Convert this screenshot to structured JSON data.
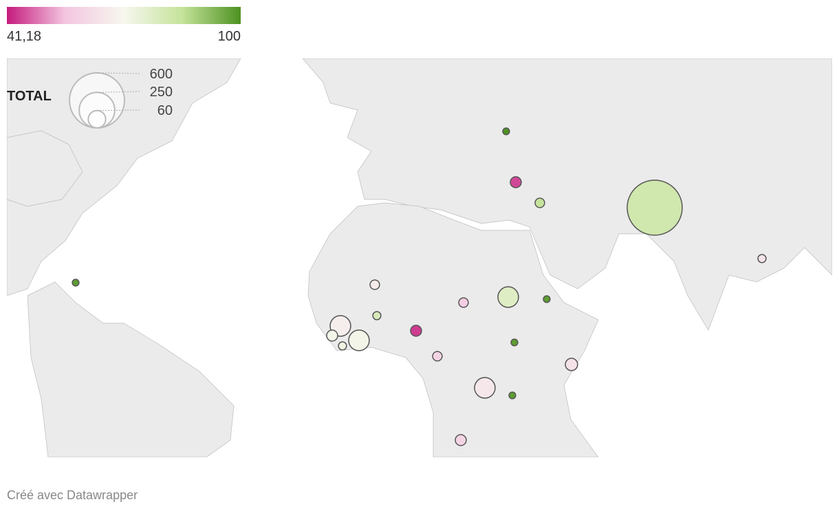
{
  "chart_data": {
    "type": "bubble-map",
    "color_legend": {
      "min": {
        "value": 41.18,
        "label": "41,18"
      },
      "max": 100,
      "colors": [
        "#c51b7d",
        "#f3c6e0",
        "#f7f7ef",
        "#c5e39a",
        "#4d9221"
      ]
    },
    "size_legend": {
      "title": "TOTAL",
      "values": [
        600,
        250,
        60
      ]
    },
    "bubbles": {
      "totals": [
        9,
        24,
        18,
        600,
        13,
        9,
        18,
        13,
        24,
        18,
        84,
        9,
        84,
        24,
        13,
        84,
        9,
        18,
        30,
        84,
        9,
        24
      ],
      "scores": [
        100,
        45,
        85,
        82,
        65,
        98,
        67,
        80,
        44,
        58,
        78,
        98,
        68,
        72,
        73,
        72,
        98,
        60,
        64,
        66,
        98,
        60
      ]
    },
    "credit": "Créé avec Datawrapper"
  }
}
